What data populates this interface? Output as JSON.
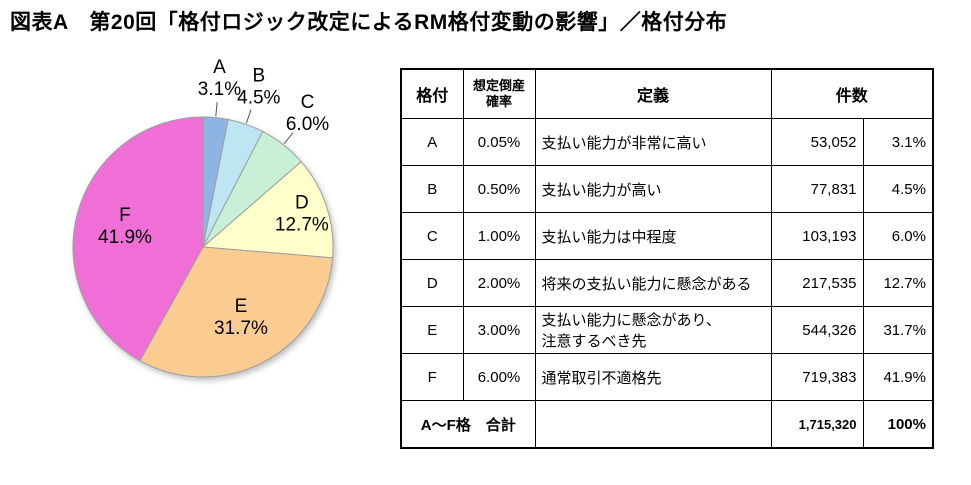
{
  "title": "図表A　第20回「格付ロジック改定によるRM格付変動の影響」／格付分布",
  "chart_data": {
    "type": "pie",
    "categories": [
      "A",
      "B",
      "C",
      "D",
      "E",
      "F"
    ],
    "values": [
      3.1,
      4.5,
      6.0,
      12.7,
      31.7,
      41.9
    ],
    "colors": [
      "#8DB4E2",
      "#BDE6F2",
      "#C9F0D6",
      "#FFFFCC",
      "#FACC92",
      "#F06FD7"
    ],
    "start_angle_deg": 0,
    "direction": "clockwise",
    "legend_position": "none",
    "label_format": "letter + percent"
  },
  "table": {
    "headers": {
      "rating": "格付",
      "probability": "想定倒産\n確率",
      "definition": "定義",
      "count": "件数"
    },
    "rows": [
      {
        "rating": "A",
        "probability": "0.05%",
        "definition": "支払い能力が非常に高い",
        "count": "53,052",
        "percent": "3.1%"
      },
      {
        "rating": "B",
        "probability": "0.50%",
        "definition": "支払い能力が高い",
        "count": "77,831",
        "percent": "4.5%"
      },
      {
        "rating": "C",
        "probability": "1.00%",
        "definition": "支払い能力は中程度",
        "count": "103,193",
        "percent": "6.0%"
      },
      {
        "rating": "D",
        "probability": "2.00%",
        "definition": "将来の支払い能力に懸念がある",
        "count": "217,535",
        "percent": "12.7%"
      },
      {
        "rating": "E",
        "probability": "3.00%",
        "definition": "支払い能力に懸念があり、\n注意するべき先",
        "count": "544,326",
        "percent": "31.7%"
      },
      {
        "rating": "F",
        "probability": "6.00%",
        "definition": "通常取引不適格先",
        "count": "719,383",
        "percent": "41.9%"
      }
    ],
    "total": {
      "label": "A～F格　合計",
      "definition": "",
      "count": "1,715,320",
      "percent": "100%"
    }
  }
}
